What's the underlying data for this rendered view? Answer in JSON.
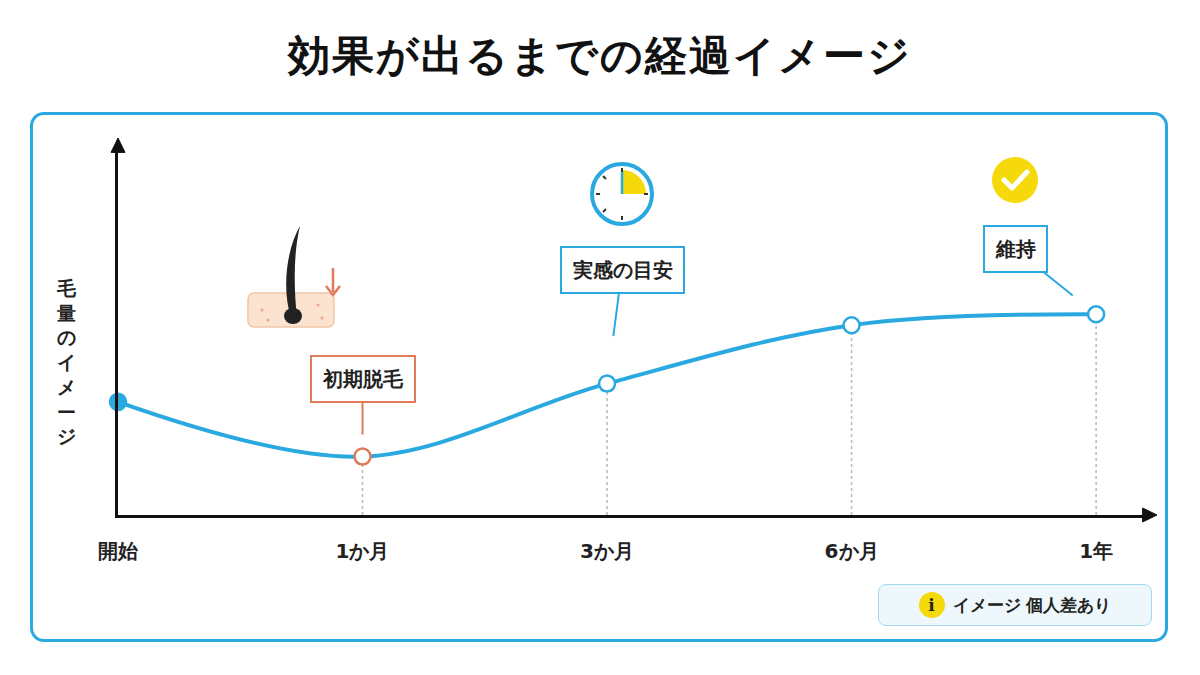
{
  "chart_data": {
    "type": "line",
    "title": "効果が出るまでの経過イメージ",
    "y_label": "毛量のイメージ",
    "categories": [
      "開始",
      "1か月",
      "3か月",
      "6か月",
      "1年"
    ],
    "values": [
      31,
      16,
      36,
      52,
      55
    ],
    "color": "#29a9e0",
    "colors": [
      "#29a9e0",
      "#e07b5a",
      "#29a9e0",
      "#29a9e0",
      "#29a9e0"
    ],
    "marker": "circle",
    "line_style": "solid",
    "ylim": [
      0,
      100
    ],
    "tick_labels": "x",
    "grid": false,
    "annotations": [
      {
        "text": "初期脱毛",
        "category": "1か月"
      },
      {
        "text": "実感の目安",
        "category": "3か月"
      },
      {
        "text": "維持",
        "category": "1年"
      }
    ],
    "note": "イメージ 個人差あり",
    "note_icon": "i"
  }
}
